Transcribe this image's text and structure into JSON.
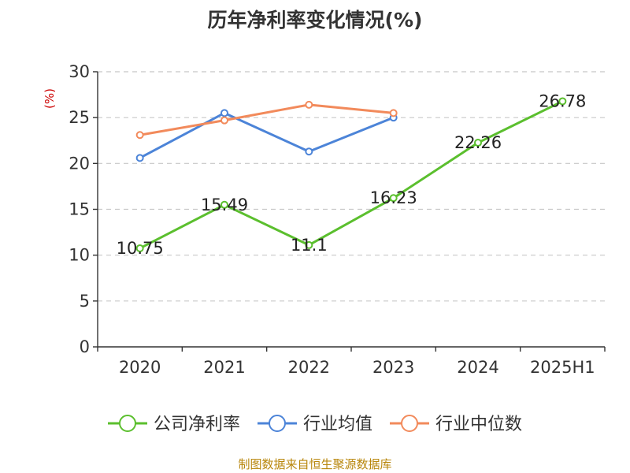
{
  "chart_data": {
    "type": "line",
    "title": "历年净利率变化情况(%)",
    "ylabel": "(%)",
    "xlabel": "",
    "categories": [
      "2020",
      "2021",
      "2022",
      "2023",
      "2024",
      "2025H1"
    ],
    "ylim": [
      0,
      30
    ],
    "yticks": [
      0,
      5,
      10,
      15,
      20,
      25,
      30
    ],
    "grid": true,
    "legend_position": "bottom",
    "series": [
      {
        "name": "公司净利率",
        "color": "#5bbf2e",
        "values": [
          10.75,
          15.49,
          11.1,
          16.23,
          22.26,
          26.78
        ],
        "show_labels": true
      },
      {
        "name": "行业均值",
        "color": "#4c84d8",
        "values": [
          20.6,
          25.5,
          21.3,
          25.0,
          null,
          null
        ],
        "show_labels": false
      },
      {
        "name": "行业中位数",
        "color": "#f28a5b",
        "values": [
          23.1,
          24.7,
          26.4,
          25.5,
          null,
          null
        ],
        "show_labels": false
      }
    ]
  },
  "source_text": "制图数据来自恒生聚源数据库"
}
